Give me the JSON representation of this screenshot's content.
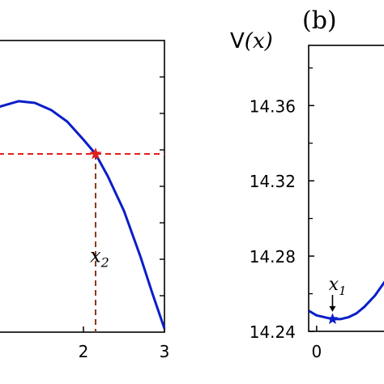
{
  "chart_data": [
    {
      "panel": "a",
      "type": "line",
      "x_ticks": [
        2,
        3
      ],
      "x_tick_labels": [
        "2",
        "3"
      ],
      "xlim": [
        0.95,
        3
      ],
      "ylim": [
        0,
        1
      ],
      "series": [
        {
          "color": "#0a1ec8",
          "x": [
            0.95,
            1.2,
            1.4,
            1.6,
            1.8,
            2.0,
            2.15,
            2.3,
            2.5,
            2.7,
            2.85,
            3.0
          ],
          "y": [
            0.772,
            0.792,
            0.786,
            0.762,
            0.722,
            0.66,
            0.611,
            0.535,
            0.416,
            0.262,
            0.134,
            0.012
          ]
        }
      ],
      "marker": {
        "x": 2.15,
        "y": 0.611,
        "color": "#e0201e",
        "shape": "star"
      },
      "hline_y": 0.611,
      "hline_color": "#e0201e",
      "vline_x": 2.15,
      "vline_color": "#8b3a1a",
      "annotation": {
        "base": "x",
        "subscript": "2",
        "x": 2.2,
        "y": 0.24
      }
    },
    {
      "panel": "b",
      "panel_label": "(b)",
      "type": "line",
      "ylabel": "V(x)",
      "ylabel_plain": "V",
      "ylabel_italic": "(x)",
      "y_ticks": [
        14.24,
        14.28,
        14.32,
        14.36
      ],
      "y_tick_labels": [
        "14.24",
        "14.28",
        "14.32",
        "14.36"
      ],
      "x_ticks": [
        0
      ],
      "x_tick_labels": [
        "0"
      ],
      "xlim": [
        -0.03,
        0.52
      ],
      "ylim": [
        14.24,
        14.392
      ],
      "series": [
        {
          "color": "#0a1ec8",
          "x": [
            -0.03,
            0.0,
            0.03,
            0.06,
            0.09,
            0.12,
            0.15,
            0.18,
            0.22,
            0.26,
            0.3,
            0.34
          ],
          "y": [
            14.251,
            14.2485,
            14.2475,
            14.2465,
            14.2465,
            14.2475,
            14.2495,
            14.253,
            14.259,
            14.267,
            14.2745,
            14.283
          ]
        }
      ],
      "marker": {
        "x": 0.06,
        "y": 14.2465,
        "color": "#0a1ec8",
        "shape": "star"
      },
      "annotation": {
        "base": "x",
        "subscript": "1",
        "x": 0.03,
        "y": 14.255
      }
    }
  ]
}
